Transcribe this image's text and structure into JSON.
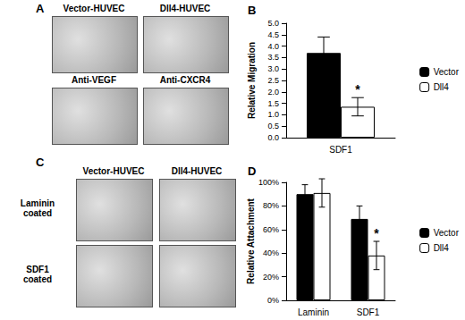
{
  "image_panels": [
    {
      "label": "A",
      "images": [
        [
          "Vector-HUVEC",
          "Dll4-HUVEC"
        ],
        [
          "Anti-VEGF",
          "Anti-CXCR4"
        ]
      ]
    },
    {
      "label": "C",
      "columns": [
        "Vector-HUVEC",
        "Dll4-HUVEC"
      ],
      "rows": [
        "Laminin coated",
        "SDF1 coated"
      ]
    }
  ],
  "chart_data": [
    {
      "type": "bar",
      "title": "B",
      "categories": [
        "SDF1"
      ],
      "y_label": "Relative Migration",
      "series": [
        {
          "name": "Vector",
          "color": "#000000",
          "values": [
            3.7
          ],
          "errors": [
            0.7
          ]
        },
        {
          "name": "Dll4",
          "color": "#ffffff",
          "values": [
            1.35
          ],
          "errors": [
            0.4
          ]
        }
      ],
      "ylim": [
        0,
        5
      ],
      "yticks": [
        {
          "value": 0,
          "label": "0.0"
        },
        {
          "value": 0.5,
          "label": "0.5"
        },
        {
          "value": 1,
          "label": "1.0"
        },
        {
          "value": 1.5,
          "label": "1.5"
        },
        {
          "value": 2,
          "label": "2.0"
        },
        {
          "value": 2.5,
          "label": "2.5"
        },
        {
          "value": 3,
          "label": "3.0"
        },
        {
          "value": 3.5,
          "label": "3.5"
        },
        {
          "value": 4,
          "label": "4.0"
        },
        {
          "value": 4.5,
          "label": "4.5"
        },
        {
          "value": 5,
          "label": "5.0"
        }
      ],
      "grid": false,
      "legend": "right",
      "annotations": [
        {
          "text": "*",
          "series": "Dll4",
          "category": "SDF1"
        }
      ]
    },
    {
      "type": "bar",
      "title": "D",
      "categories": [
        "Laminin",
        "SDF1"
      ],
      "y_label": "Relative Attachment",
      "series": [
        {
          "name": "Vector",
          "color": "#000000",
          "values": [
            90,
            69
          ],
          "errors": [
            8,
            11
          ]
        },
        {
          "name": "Dll4",
          "color": "#ffffff",
          "values": [
            91,
            38
          ],
          "errors": [
            12,
            12
          ]
        }
      ],
      "ylim": [
        0,
        100
      ],
      "yticks": [
        {
          "value": 0,
          "label": "0%"
        },
        {
          "value": 20,
          "label": "20%"
        },
        {
          "value": 40,
          "label": "40%"
        },
        {
          "value": 60,
          "label": "60%"
        },
        {
          "value": 80,
          "label": "80%"
        },
        {
          "value": 100,
          "label": "100%"
        }
      ],
      "grid": false,
      "legend": "right",
      "annotations": [
        {
          "text": "*",
          "series": "Dll4",
          "category": "SDF1"
        }
      ]
    }
  ]
}
